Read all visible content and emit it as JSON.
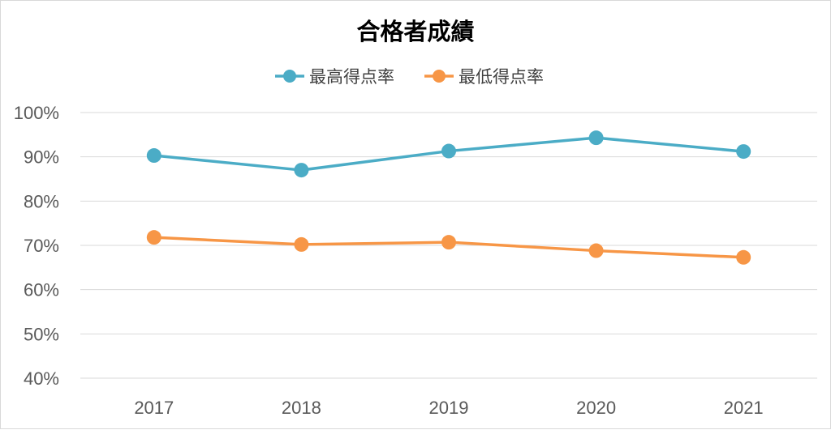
{
  "chart_data": {
    "type": "line",
    "title": "合格者成績",
    "categories": [
      "2017",
      "2018",
      "2019",
      "2020",
      "2021"
    ],
    "series": [
      {
        "name": "最高得点率",
        "color": "#4bacc6",
        "values": [
          90.3,
          87.0,
          91.3,
          94.3,
          91.2
        ]
      },
      {
        "name": "最低得点率",
        "color": "#f79646",
        "values": [
          71.8,
          70.2,
          70.7,
          68.8,
          67.3
        ]
      }
    ],
    "ylim": [
      40,
      100
    ],
    "yticks": [
      100,
      90,
      80,
      70,
      60,
      50,
      40
    ],
    "ytick_labels": [
      "100%",
      "90%",
      "80%",
      "70%",
      "60%",
      "50%",
      "40%"
    ],
    "grid": true,
    "legend_position": "top"
  }
}
